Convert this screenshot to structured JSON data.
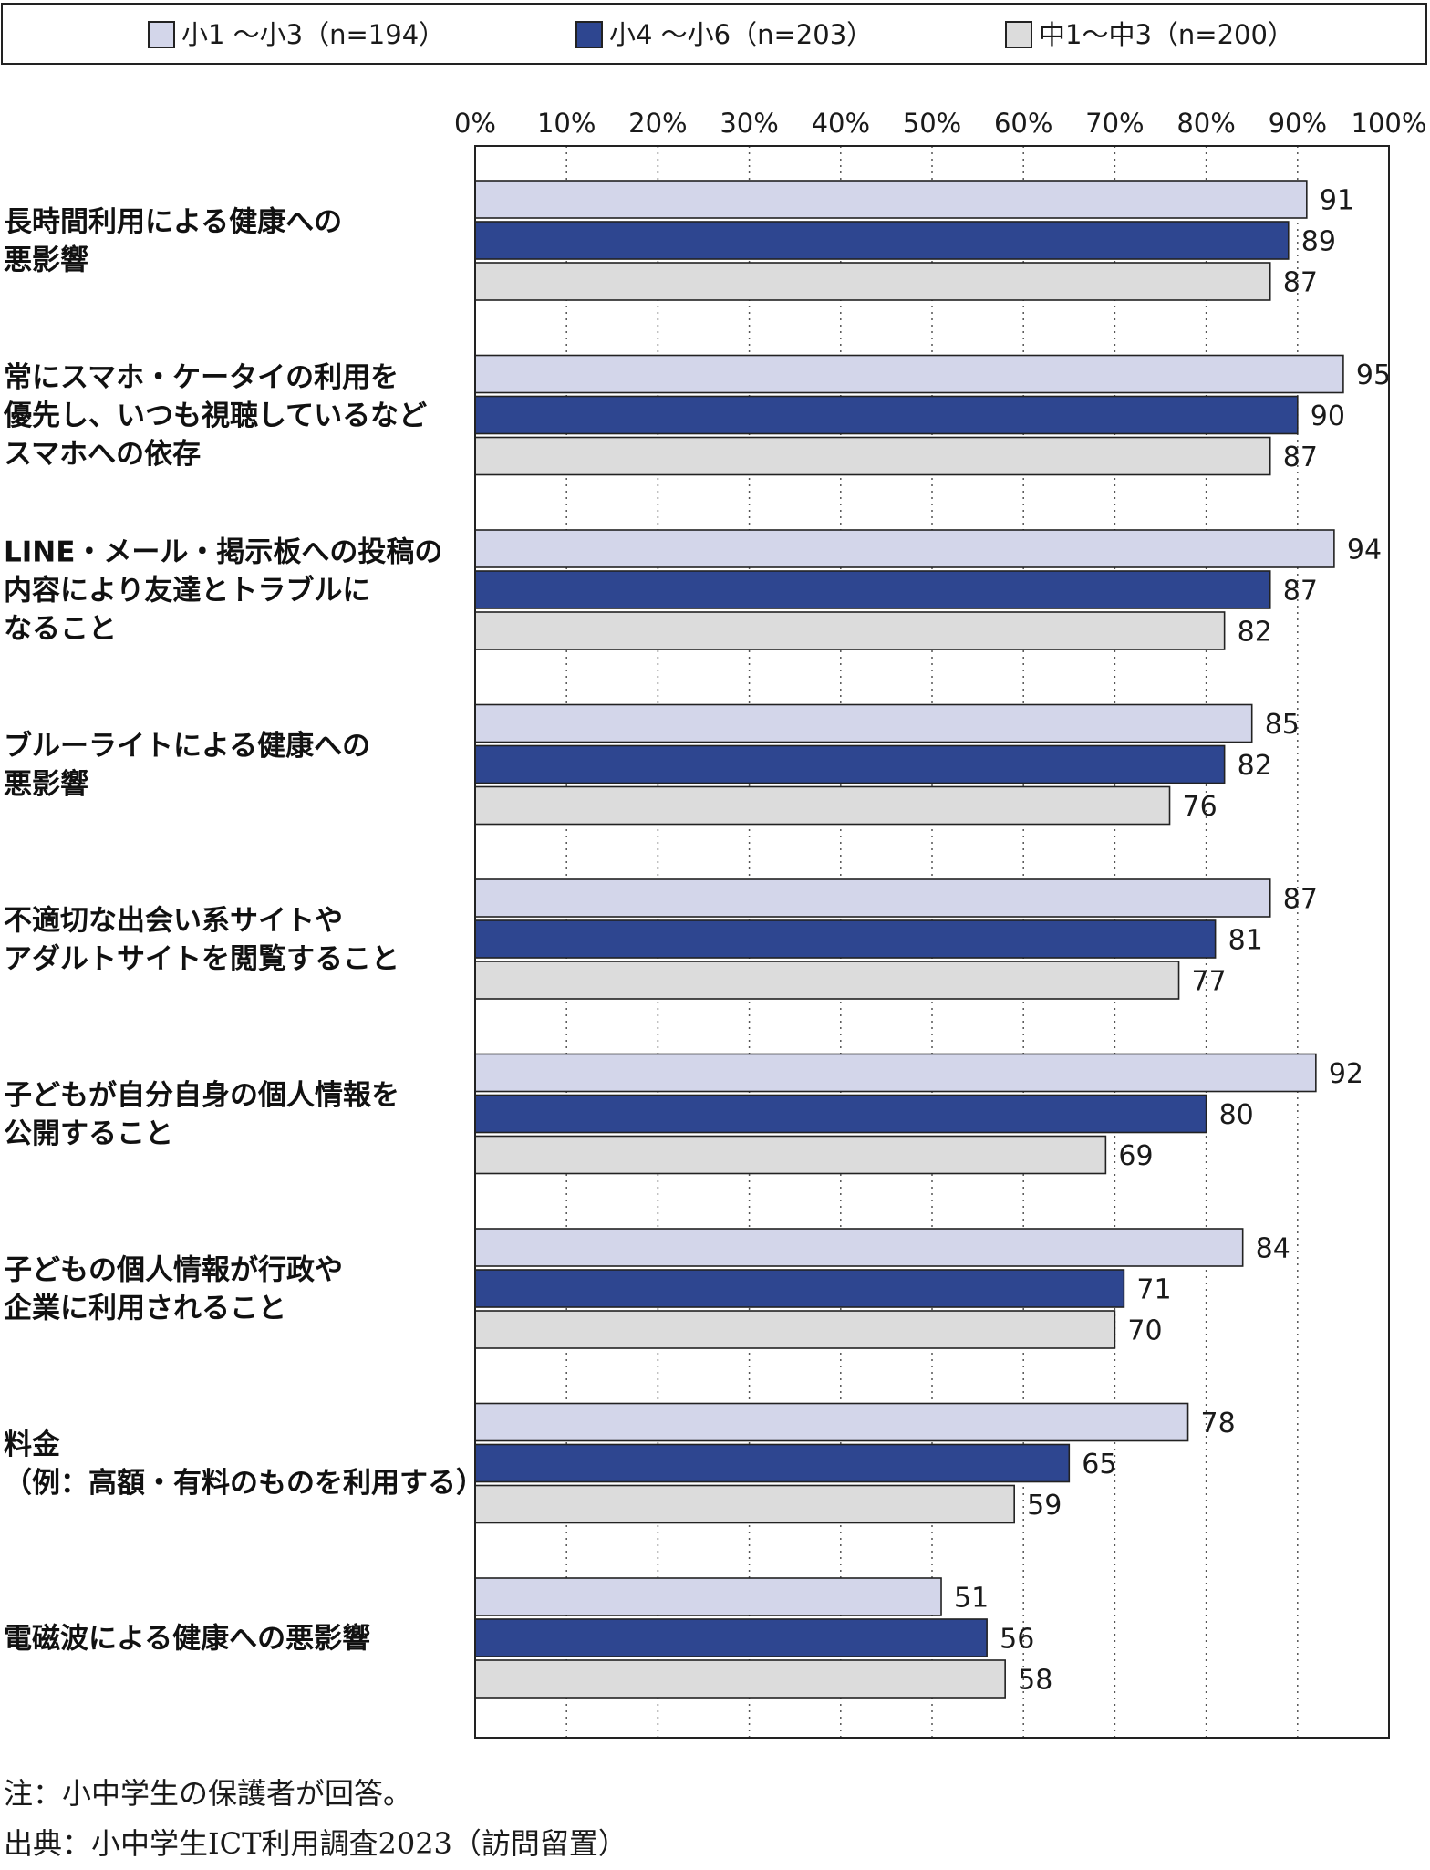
{
  "chart_data": {
    "type": "bar",
    "orientation": "horizontal",
    "title": "",
    "xlabel": "",
    "ylabel": "",
    "xlim": [
      0,
      100
    ],
    "x_ticks": [
      "0%",
      "10%",
      "20%",
      "30%",
      "40%",
      "50%",
      "60%",
      "70%",
      "80%",
      "90%",
      "100%"
    ],
    "grid": "vertical dotted",
    "legend_position": "top",
    "categories": [
      [
        "長時間利用による健康への",
        "悪影響"
      ],
      [
        "常にスマホ・ケータイの利用を",
        "優先し、いつも視聴しているなど",
        "スマホへの依存"
      ],
      [
        "LINE・メール・掲示板への投稿の",
        "内容により友達とトラブルに",
        "なること"
      ],
      [
        "ブルーライトによる健康への",
        "悪影響"
      ],
      [
        "不適切な出会い系サイトや",
        "アダルトサイトを閲覧すること"
      ],
      [
        "子どもが自分自身の個人情報を",
        "公開すること"
      ],
      [
        "子どもの個人情報が行政や",
        "企業に利用されること"
      ],
      [
        "料金",
        "（例：高額・有料のものを利用する）"
      ],
      [
        "電磁波による健康への悪影響"
      ]
    ],
    "series": [
      {
        "name": "小1 ～小3（n=194）",
        "color": "#d3d6ea",
        "values": [
          91,
          95,
          94,
          85,
          87,
          92,
          84,
          78,
          51
        ]
      },
      {
        "name": "小4 ～小6（n=203）",
        "color": "#2e4690",
        "values": [
          89,
          90,
          87,
          82,
          81,
          80,
          71,
          65,
          56
        ]
      },
      {
        "name": "中1～中3（n=200）",
        "color": "#dcdcdc",
        "values": [
          87,
          87,
          82,
          76,
          77,
          69,
          70,
          59,
          58
        ]
      }
    ]
  },
  "notes": {
    "note": "注：小中学生の保護者が回答。",
    "source": "出典：小中学生ICT利用調査2023（訪問留置）"
  }
}
